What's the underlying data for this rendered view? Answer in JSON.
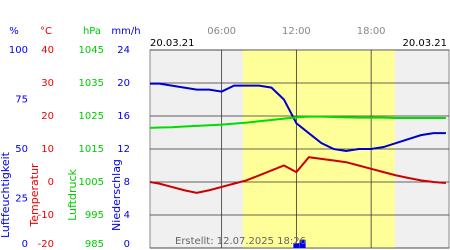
{
  "chart_data": {
    "type": "line",
    "date_left": "20.03.21",
    "date_right": "20.03.21",
    "footer": "Erstellt: 12.07.2025 18:26",
    "xlim": [
      0.25,
      24.25
    ],
    "xticks": [
      {
        "value": 6,
        "label": "06:00"
      },
      {
        "value": 12,
        "label": "12:00"
      },
      {
        "value": 18,
        "label": "18:00"
      }
    ],
    "daylight": [
      7.7,
      19.9
    ],
    "grid": true,
    "axes": [
      {
        "unit": "%",
        "label": "Luftfeuchtigkeit",
        "color": "#0000ee",
        "ylim": [
          0,
          100
        ],
        "ticks": [
          0,
          25,
          50,
          75,
          100
        ]
      },
      {
        "unit": "°C",
        "label": "Temperatur",
        "color": "#ee0000",
        "ylim": [
          -20,
          40
        ],
        "ticks": [
          -20,
          -10,
          0,
          10,
          20,
          30,
          40
        ]
      },
      {
        "unit": "hPa",
        "label": "Luftdruck",
        "color": "#00cc00",
        "ylim": [
          985,
          1045
        ],
        "ticks": [
          985,
          995,
          1005,
          1015,
          1025,
          1035,
          1045
        ]
      },
      {
        "unit": "mm/h",
        "label": "Niederschlag",
        "color": "#0000ee",
        "ylim": [
          0,
          24
        ],
        "ticks": [
          0,
          4,
          8,
          12,
          16,
          20,
          24
        ]
      }
    ],
    "x": [
      0.25,
      1,
      2,
      3,
      4,
      5,
      6,
      7,
      8,
      9,
      10,
      11,
      12,
      13,
      14,
      15,
      16,
      17,
      18,
      19,
      20,
      21,
      22,
      23,
      24
    ],
    "series": [
      {
        "axis": 0,
        "color": "#0000cc",
        "values": [
          83,
          83,
          82,
          81,
          80,
          80,
          79,
          82,
          82,
          82,
          81,
          75,
          63,
          58,
          53,
          50,
          49,
          50,
          50,
          51,
          53,
          55,
          57,
          58,
          58
        ]
      },
      {
        "axis": 1,
        "color": "#cc0000",
        "values": [
          0,
          -0.5,
          -1.5,
          -2.5,
          -3.3,
          -2.5,
          -1.5,
          -0.5,
          0.5,
          2,
          3.5,
          5,
          3,
          7.5,
          7,
          6.5,
          6,
          5,
          4,
          3,
          2,
          1.2,
          0.5,
          0,
          -0.3
        ]
      },
      {
        "axis": 2,
        "color": "#00dd00",
        "values": [
          1021.4,
          1021.5,
          1021.6,
          1021.8,
          1022,
          1022.2,
          1022.4,
          1022.7,
          1023,
          1023.4,
          1023.8,
          1024.2,
          1024.6,
          1024.8,
          1024.8,
          1024.7,
          1024.6,
          1024.5,
          1024.5,
          1024.5,
          1024.4,
          1024.4,
          1024.4,
          1024.4,
          1024.4
        ]
      }
    ],
    "precipitation": {
      "axis": 3,
      "color": "#0000ee",
      "x": [
        12,
        12.5
      ],
      "values": [
        0.6,
        1
      ]
    }
  }
}
